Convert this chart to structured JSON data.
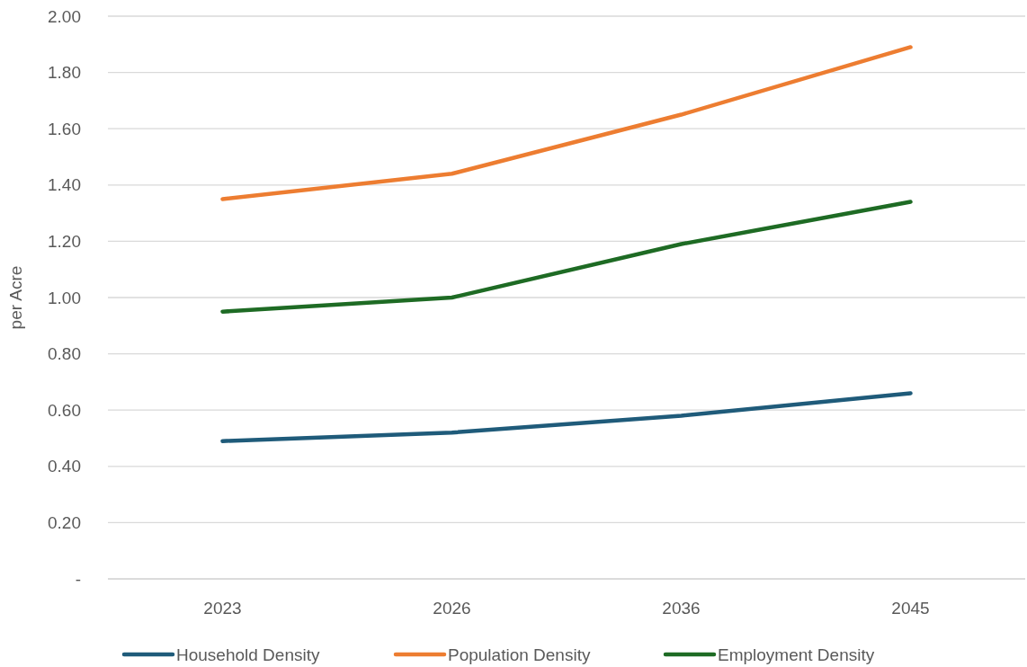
{
  "chart_data": {
    "type": "line",
    "ylabel": "per Acre",
    "categories": [
      "2023",
      "2026",
      "2036",
      "2045"
    ],
    "series": [
      {
        "name": "Household Density",
        "color": "#1f5b7a",
        "values": [
          0.49,
          0.52,
          0.58,
          0.66
        ]
      },
      {
        "name": "Population Density",
        "color": "#ed7d31",
        "values": [
          1.35,
          1.44,
          1.65,
          1.89
        ]
      },
      {
        "name": "Employment Density",
        "color": "#1e6b24",
        "values": [
          0.95,
          1.0,
          1.19,
          1.34
        ]
      }
    ],
    "ylim": [
      0,
      2
    ],
    "yticks": [
      {
        "value": 0,
        "label": "-"
      },
      {
        "value": 0.2,
        "label": "0.20"
      },
      {
        "value": 0.4,
        "label": "0.40"
      },
      {
        "value": 0.6,
        "label": "0.60"
      },
      {
        "value": 0.8,
        "label": "0.80"
      },
      {
        "value": 1,
        "label": "1.00"
      },
      {
        "value": 1.2,
        "label": "1.20"
      },
      {
        "value": 1.4,
        "label": "1.40"
      },
      {
        "value": 1.6,
        "label": "1.60"
      },
      {
        "value": 1.8,
        "label": "1.80"
      },
      {
        "value": 2,
        "label": "2.00"
      }
    ],
    "grid": "y",
    "legend": "bottom",
    "marker": "none",
    "line_style": "solid"
  }
}
